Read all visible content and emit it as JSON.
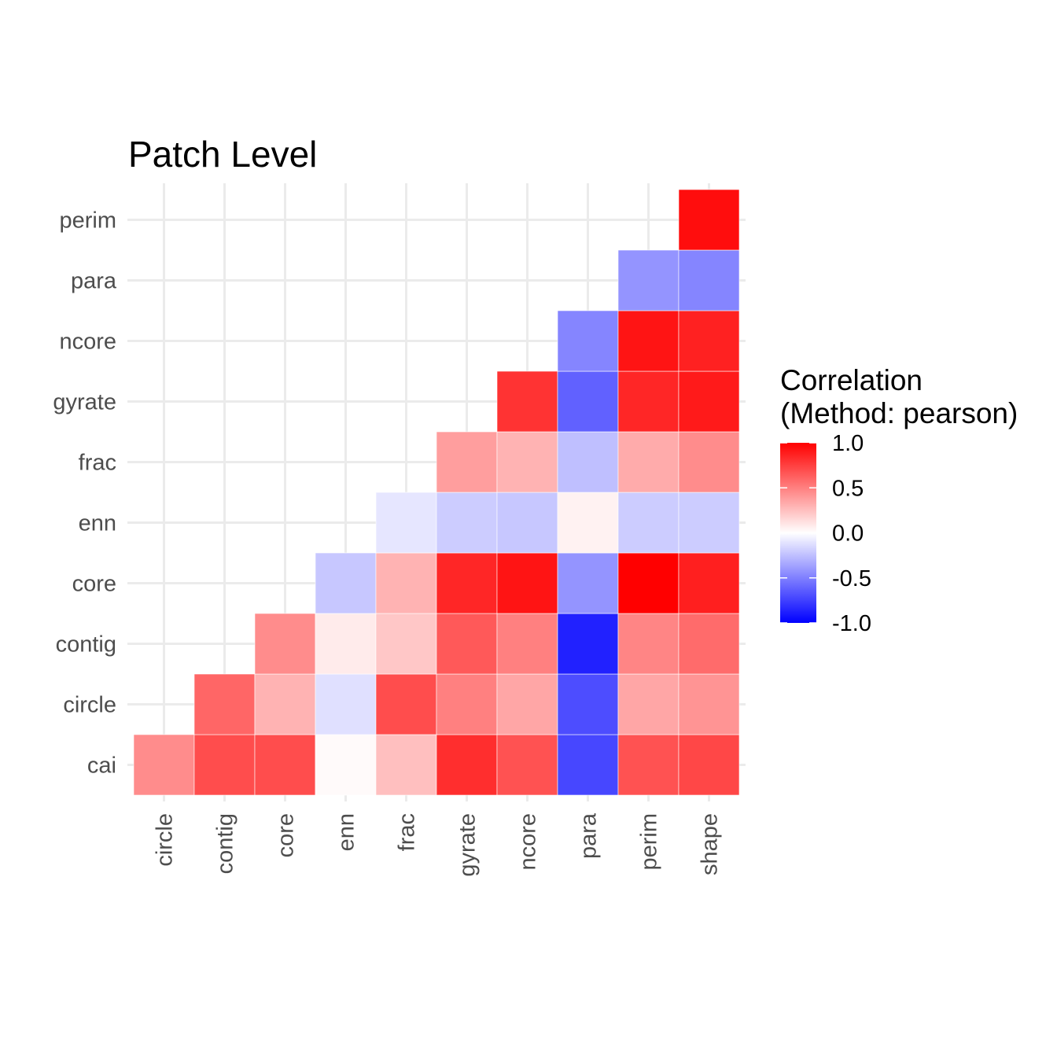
{
  "chart_data": {
    "type": "heatmap",
    "title": "Patch Level",
    "x_categories": [
      "circle",
      "contig",
      "core",
      "enn",
      "frac",
      "gyrate",
      "ncore",
      "para",
      "perim",
      "shape"
    ],
    "y_categories": [
      "cai",
      "circle",
      "contig",
      "core",
      "enn",
      "frac",
      "gyrate",
      "ncore",
      "para",
      "perim"
    ],
    "cells": [
      {
        "x": "circle",
        "y": "cai",
        "value": 0.45
      },
      {
        "x": "contig",
        "y": "cai",
        "value": 0.7
      },
      {
        "x": "core",
        "y": "cai",
        "value": 0.7
      },
      {
        "x": "enn",
        "y": "cai",
        "value": 0.02
      },
      {
        "x": "frac",
        "y": "cai",
        "value": 0.25
      },
      {
        "x": "gyrate",
        "y": "cai",
        "value": 0.82
      },
      {
        "x": "ncore",
        "y": "cai",
        "value": 0.68
      },
      {
        "x": "para",
        "y": "cai",
        "value": -0.72
      },
      {
        "x": "perim",
        "y": "cai",
        "value": 0.68
      },
      {
        "x": "shape",
        "y": "cai",
        "value": 0.72
      },
      {
        "x": "contig",
        "y": "circle",
        "value": 0.6
      },
      {
        "x": "core",
        "y": "circle",
        "value": 0.3
      },
      {
        "x": "enn",
        "y": "circle",
        "value": -0.12
      },
      {
        "x": "frac",
        "y": "circle",
        "value": 0.7
      },
      {
        "x": "gyrate",
        "y": "circle",
        "value": 0.5
      },
      {
        "x": "ncore",
        "y": "circle",
        "value": 0.35
      },
      {
        "x": "para",
        "y": "circle",
        "value": -0.7
      },
      {
        "x": "perim",
        "y": "circle",
        "value": 0.35
      },
      {
        "x": "shape",
        "y": "circle",
        "value": 0.42
      },
      {
        "x": "core",
        "y": "contig",
        "value": 0.45
      },
      {
        "x": "enn",
        "y": "contig",
        "value": 0.08
      },
      {
        "x": "frac",
        "y": "contig",
        "value": 0.22
      },
      {
        "x": "gyrate",
        "y": "contig",
        "value": 0.65
      },
      {
        "x": "ncore",
        "y": "contig",
        "value": 0.5
      },
      {
        "x": "para",
        "y": "contig",
        "value": -0.87
      },
      {
        "x": "perim",
        "y": "contig",
        "value": 0.48
      },
      {
        "x": "shape",
        "y": "contig",
        "value": 0.58
      },
      {
        "x": "enn",
        "y": "core",
        "value": -0.22
      },
      {
        "x": "frac",
        "y": "core",
        "value": 0.3
      },
      {
        "x": "gyrate",
        "y": "core",
        "value": 0.85
      },
      {
        "x": "ncore",
        "y": "core",
        "value": 0.92
      },
      {
        "x": "para",
        "y": "core",
        "value": -0.42
      },
      {
        "x": "perim",
        "y": "core",
        "value": 1.0
      },
      {
        "x": "shape",
        "y": "core",
        "value": 0.88
      },
      {
        "x": "frac",
        "y": "enn",
        "value": -0.1
      },
      {
        "x": "gyrate",
        "y": "enn",
        "value": -0.2
      },
      {
        "x": "ncore",
        "y": "enn",
        "value": -0.22
      },
      {
        "x": "para",
        "y": "enn",
        "value": 0.05
      },
      {
        "x": "perim",
        "y": "enn",
        "value": -0.2
      },
      {
        "x": "shape",
        "y": "enn",
        "value": -0.2
      },
      {
        "x": "gyrate",
        "y": "frac",
        "value": 0.38
      },
      {
        "x": "ncore",
        "y": "frac",
        "value": 0.3
      },
      {
        "x": "para",
        "y": "frac",
        "value": -0.25
      },
      {
        "x": "perim",
        "y": "frac",
        "value": 0.33
      },
      {
        "x": "shape",
        "y": "frac",
        "value": 0.45
      },
      {
        "x": "ncore",
        "y": "gyrate",
        "value": 0.8
      },
      {
        "x": "para",
        "y": "gyrate",
        "value": -0.62
      },
      {
        "x": "perim",
        "y": "gyrate",
        "value": 0.85
      },
      {
        "x": "shape",
        "y": "gyrate",
        "value": 0.9
      },
      {
        "x": "para",
        "y": "ncore",
        "value": -0.48
      },
      {
        "x": "perim",
        "y": "ncore",
        "value": 0.92
      },
      {
        "x": "shape",
        "y": "ncore",
        "value": 0.87
      },
      {
        "x": "perim",
        "y": "para",
        "value": -0.42
      },
      {
        "x": "shape",
        "y": "para",
        "value": -0.48
      },
      {
        "x": "shape",
        "y": "perim",
        "value": 0.95
      }
    ],
    "color_scale": {
      "low": "#0000FF",
      "mid": "#FFFFFF",
      "high": "#FF0000",
      "limits": [
        -1,
        1
      ]
    },
    "legend": {
      "title_line1": "Correlation",
      "title_line2": "(Method: pearson)",
      "ticks": [
        1.0,
        0.5,
        0.0,
        -0.5,
        -1.0
      ],
      "tick_labels": [
        "1.0",
        "0.5",
        "0.0",
        "-0.5",
        "-1.0"
      ],
      "position": "right"
    },
    "grid": true
  }
}
